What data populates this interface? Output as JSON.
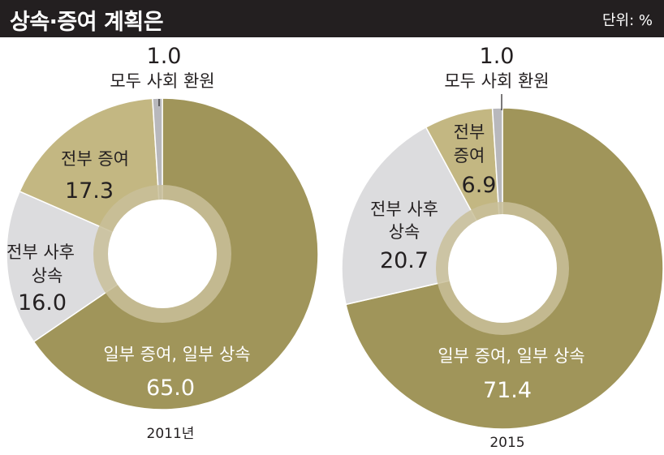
{
  "header": {
    "title": "상속·증여 계획은",
    "unit": "단위: %"
  },
  "colors": {
    "header_bg": "#231f20",
    "olive": "#a0955a",
    "tan": "#c3b782",
    "light_gray": "#dcdcde",
    "gray": "#b8b8bc",
    "inner_ring": "#c9c09a"
  },
  "chart_data": [
    {
      "type": "pie",
      "year_label": "2011년",
      "slices": [
        {
          "label": "일부 증여, 일부 상속",
          "value": 65.0,
          "display": "65.0"
        },
        {
          "label": "전부 사후 상속",
          "value": 16.0,
          "display": "16.0"
        },
        {
          "label": "전부 증여",
          "value": 17.3,
          "display": "17.3"
        },
        {
          "label": "모두 사회 환원",
          "value": 1.0,
          "display": "1.0"
        }
      ]
    },
    {
      "type": "pie",
      "year_label": "2015",
      "slices": [
        {
          "label": "일부 증여, 일부 상속",
          "value": 71.4,
          "display": "71.4"
        },
        {
          "label": "전부 사후 상속",
          "value": 20.7,
          "display": "20.7"
        },
        {
          "label": "전부 증여",
          "value": 6.9,
          "display": "6.9"
        },
        {
          "label": "모두 사회 환원",
          "value": 1.0,
          "display": "1.0"
        }
      ]
    }
  ]
}
